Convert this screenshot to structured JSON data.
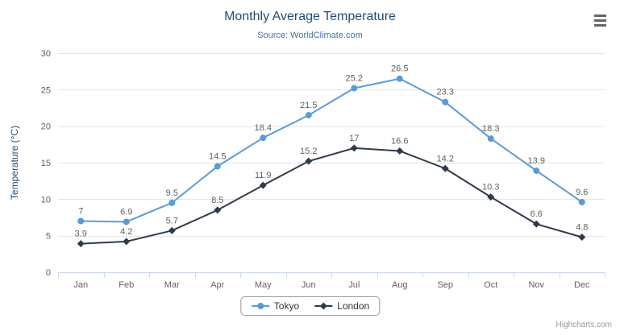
{
  "header": {
    "title": "Monthly Average Temperature",
    "subtitle": "Source: WorldClimate.com"
  },
  "icons": {
    "menu": "hamburger-icon"
  },
  "credits": {
    "label": "Highcharts.com"
  },
  "colors": {
    "title": "#274b6d",
    "subtitle": "#4572a7",
    "grid": "#e6e6e6",
    "axis_line": "#ccd6eb",
    "tick_label": "#606060",
    "data_label": "#606060",
    "axis_title": "#274b6d",
    "legend_text": "#333333",
    "credits": "#999999"
  },
  "chart_data": {
    "type": "line",
    "title": "Monthly Average Temperature",
    "subtitle": "Source: WorldClimate.com",
    "categories": [
      "Jan",
      "Feb",
      "Mar",
      "Apr",
      "May",
      "Jun",
      "Jul",
      "Aug",
      "Sep",
      "Oct",
      "Nov",
      "Dec"
    ],
    "xlabel": "",
    "ylabel": "Temperature (°C)",
    "ylim": [
      0,
      30
    ],
    "yticks": [
      0,
      5,
      10,
      15,
      20,
      25,
      30
    ],
    "grid": true,
    "data_labels": true,
    "legend_position": "bottom-center",
    "series": [
      {
        "name": "Tokyo",
        "color": "#5b9bd5",
        "marker": "circle",
        "values": [
          7,
          6.9,
          9.5,
          14.5,
          18.4,
          21.5,
          25.2,
          26.5,
          23.3,
          18.3,
          13.9,
          9.6
        ]
      },
      {
        "name": "London",
        "color": "#2f3b4c",
        "marker": "diamond",
        "values": [
          3.9,
          4.2,
          5.7,
          8.5,
          11.9,
          15.2,
          17,
          16.6,
          14.2,
          10.3,
          6.6,
          4.8
        ]
      }
    ]
  }
}
